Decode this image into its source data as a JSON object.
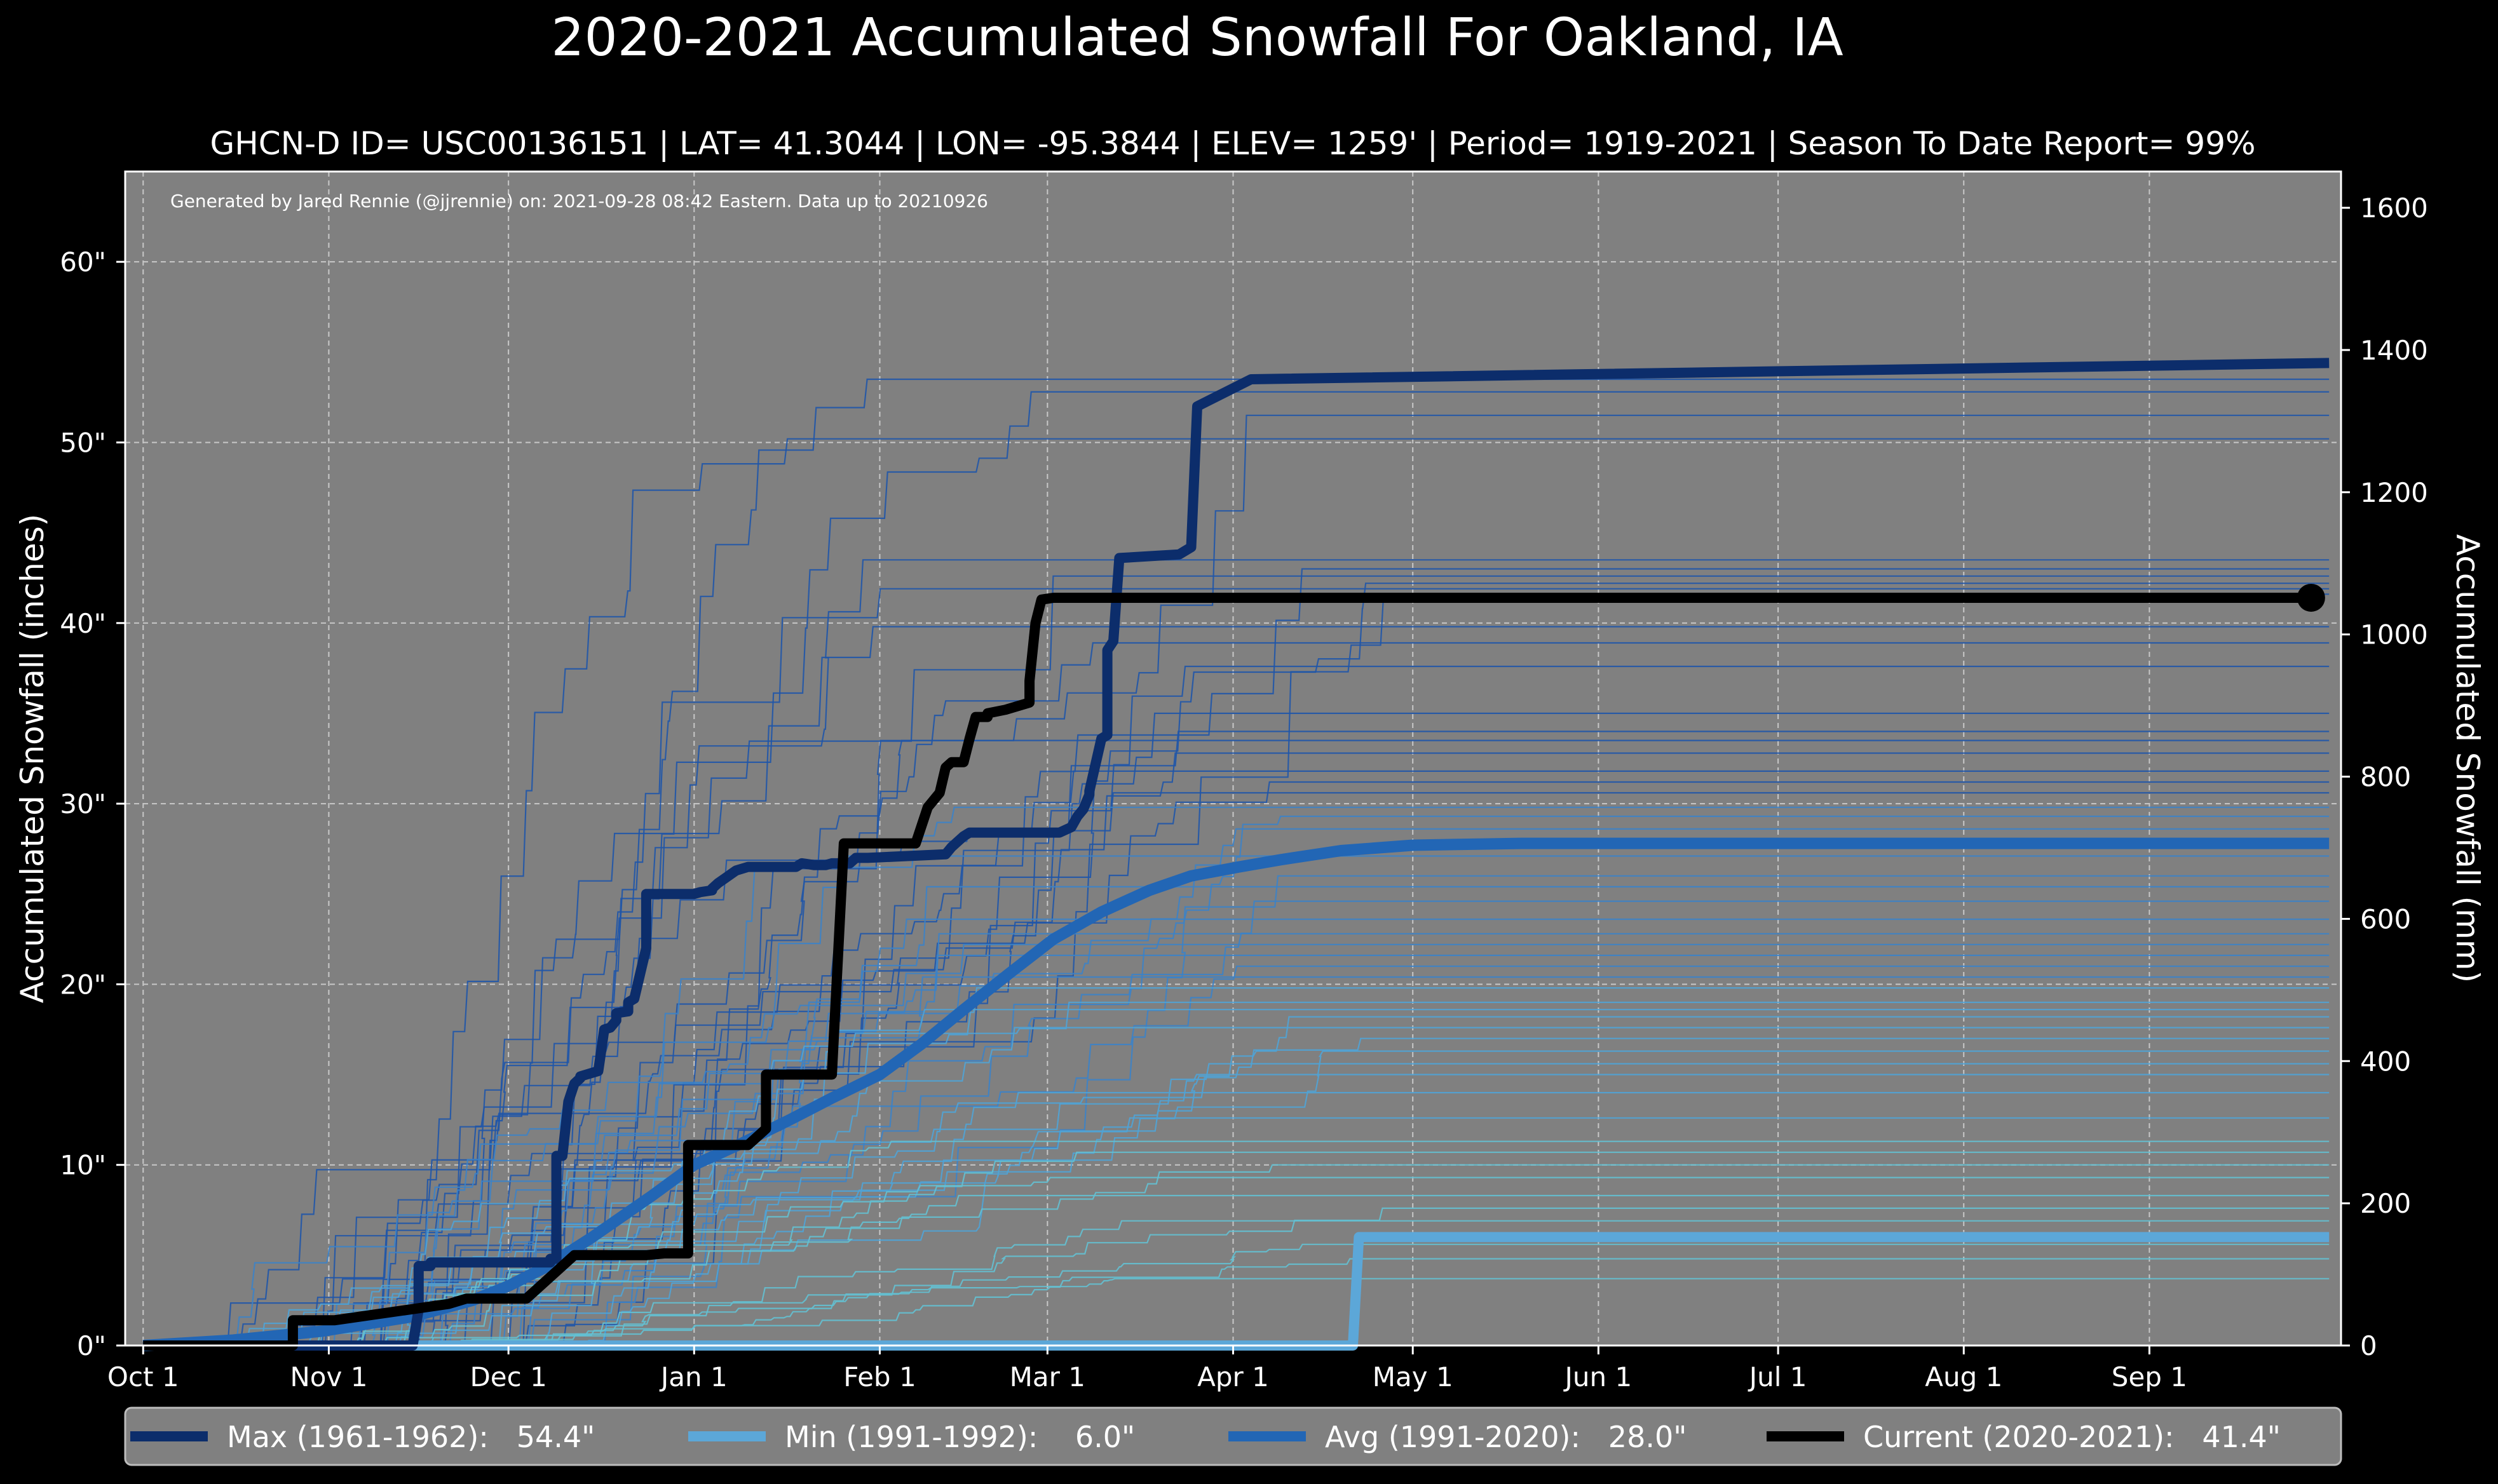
{
  "chart_data": {
    "type": "line",
    "title": "2020-2021 Accumulated Snowfall For Oakland, IA",
    "subtitle": "GHCN-D ID= USC00136151 | LAT= 41.3044 | LON= -95.3844 | ELEV= 1259' | Period= 1919-2021 | Season To Date Report= 99%",
    "annotation": "Generated by Jared Rennie (@jjrennie) on: 2021-09-28 08:42 Eastern. Data up to 20210926",
    "ylabel": "Accumulated Snowfall (inches)",
    "ylabel_right": "Accumulated Snowfall (mm)",
    "xlabel": "",
    "x_unit": "day of season (0 = Oct 1)",
    "xlim": [
      -3,
      367
    ],
    "ylim": [
      0,
      65
    ],
    "ylim_right": [
      0,
      1651
    ],
    "grid": true,
    "legend_position": "bottom",
    "x_ticks": [
      {
        "day": 0,
        "label": "Oct 1"
      },
      {
        "day": 31,
        "label": "Nov 1"
      },
      {
        "day": 61,
        "label": "Dec 1"
      },
      {
        "day": 92,
        "label": "Jan 1"
      },
      {
        "day": 123,
        "label": "Feb 1"
      },
      {
        "day": 151,
        "label": "Mar 1"
      },
      {
        "day": 182,
        "label": "Apr 1"
      },
      {
        "day": 212,
        "label": "May 1"
      },
      {
        "day": 243,
        "label": "Jun 1"
      },
      {
        "day": 273,
        "label": "Jul 1"
      },
      {
        "day": 304,
        "label": "Aug 1"
      },
      {
        "day": 335,
        "label": "Sep 1"
      }
    ],
    "y_ticks": [
      {
        "value": 0,
        "label": "0\""
      },
      {
        "value": 10,
        "label": "10\""
      },
      {
        "value": 20,
        "label": "20\""
      },
      {
        "value": 30,
        "label": "30\""
      },
      {
        "value": 40,
        "label": "40\""
      },
      {
        "value": 50,
        "label": "50\""
      },
      {
        "value": 60,
        "label": "60\""
      }
    ],
    "y_ticks_right": [
      0,
      200,
      400,
      600,
      800,
      1000,
      1200,
      1400,
      1600
    ],
    "series": [
      {
        "name": "Max (1961-1962)",
        "legend_label": "Max (1961-1962):   54.4\"",
        "color": "#0c2d6b",
        "total": 54.4,
        "x": [
          0,
          45,
          46,
          46,
          48,
          48,
          59,
          61,
          61,
          68,
          68,
          69,
          69,
          70,
          71,
          72,
          73,
          73,
          74,
          75,
          76,
          76,
          77,
          78,
          79,
          79,
          81,
          81,
          82,
          84,
          84,
          86,
          91,
          92,
          93,
          95,
          95,
          96,
          99,
          101,
          109,
          110,
          112,
          114,
          115,
          117,
          118,
          119,
          119,
          121,
          134,
          135,
          137,
          138,
          139,
          140,
          140,
          141,
          142,
          143,
          143,
          144,
          145,
          147,
          148,
          148,
          153,
          155,
          156,
          157,
          158,
          158,
          160,
          161,
          161,
          162,
          163,
          163,
          173,
          174,
          175,
          176,
          176,
          185,
          365
        ],
        "y": [
          0,
          0,
          2,
          4.4,
          4.4,
          4.6,
          4.6,
          4.6,
          4.6,
          4.6,
          4.8,
          4.8,
          10.5,
          10.5,
          13.5,
          14.5,
          14.8,
          14.9,
          15,
          15.1,
          15.2,
          15.2,
          17.5,
          17.6,
          18,
          18.4,
          18.5,
          19,
          19.2,
          22,
          25,
          25,
          25,
          25,
          25.1,
          25.2,
          25.3,
          25.6,
          26.3,
          26.5,
          26.5,
          26.7,
          26.6,
          26.6,
          26.7,
          26.7,
          26.7,
          27,
          27,
          27,
          27.2,
          27.6,
          28.2,
          28.4,
          28.4,
          28.4,
          28.4,
          28.4,
          28.4,
          28.4,
          28.4,
          28.4,
          28.4,
          28.4,
          28.4,
          28.4,
          28.4,
          28.7,
          29.3,
          29.7,
          30.5,
          30.7,
          33.6,
          33.8,
          38.5,
          39,
          43.6,
          43.6,
          43.8,
          44,
          44.2,
          52,
          52,
          53.5,
          54.4
        ]
      },
      {
        "name": "Min (1991-1992)",
        "legend_label": "Min (1991-1992):    6.0\"",
        "color": "#5ca7d8",
        "total": 6.0,
        "x": [
          0,
          202,
          203,
          365
        ],
        "y": [
          0,
          0,
          6,
          6
        ]
      },
      {
        "name": "Avg (1991-2020)",
        "legend_label": "Avg (1991-2020):   28.0\"",
        "color": "#2266b5",
        "total": 28.0,
        "x": [
          0,
          15,
          30,
          45,
          55,
          61,
          67,
          75,
          85,
          92,
          100,
          108,
          115,
          123,
          130,
          137,
          145,
          152,
          160,
          168,
          175,
          183,
          190,
          200,
          212,
          230,
          365
        ],
        "y": [
          0,
          0.3,
          0.8,
          1.6,
          2.5,
          3.3,
          4.3,
          6,
          8.3,
          10,
          11.2,
          12.5,
          13.7,
          15,
          16.7,
          18.6,
          20.7,
          22.5,
          24,
          25.2,
          26,
          26.5,
          26.9,
          27.4,
          27.7,
          27.8,
          27.8
        ]
      },
      {
        "name": "Current (2020-2021)",
        "legend_label": "Current (2020-2021):   41.4\"",
        "color": "#000000",
        "total": 41.4,
        "x": [
          0,
          18,
          25,
          25,
          32,
          32,
          51,
          54,
          54,
          60,
          64,
          72,
          72,
          77,
          84,
          87,
          90,
          91,
          91,
          94,
          101,
          104,
          104,
          107,
          109,
          115,
          117,
          118,
          121,
          121,
          129,
          131,
          131,
          133,
          134,
          135,
          136,
          137,
          138,
          139,
          141,
          141,
          144,
          148,
          148,
          149,
          150,
          152,
          154,
          154,
          362
        ],
        "y": [
          0,
          0,
          0,
          1.4,
          1.4,
          1.4,
          2.3,
          2.6,
          2.6,
          2.6,
          2.6,
          5,
          5,
          5,
          5,
          5.1,
          5.1,
          5.1,
          11.1,
          11.1,
          11.1,
          12,
          15,
          15,
          15,
          15,
          27.8,
          27.8,
          27.8,
          27.8,
          27.8,
          29.8,
          29.8,
          30.6,
          32,
          32.3,
          32.3,
          32.3,
          33.6,
          34.8,
          34.8,
          35,
          35.2,
          35.6,
          36.8,
          40,
          41.3,
          41.4,
          41.4,
          41.4,
          41.4
        ]
      }
    ],
    "historical_series": {
      "description": "Individual historical seasons (thin lines), season-end totals in inches",
      "color_scale": [
        "#1f55a8",
        "#3b82c8",
        "#4fa3d6",
        "#63c0d1"
      ],
      "season_totals": [
        53.5,
        52.8,
        51.5,
        50.2,
        43.5,
        43.0,
        42.6,
        42.2,
        41.9,
        41.6,
        39.8,
        38.9,
        37.6,
        35.0,
        34.0,
        33.5,
        32.8,
        31.8,
        31.2,
        30.6,
        29.8,
        29.3,
        28.6,
        27.1,
        26.0,
        25.4,
        24.6,
        23.6,
        22.8,
        22.2,
        21.6,
        21.0,
        20.4,
        19.8,
        19.0,
        18.6,
        18.2,
        17.6,
        17.0,
        16.3,
        15.6,
        15.0,
        14.0,
        12.6,
        11.3,
        10.7,
        10.0,
        9.3,
        8.3,
        7.6,
        6.9,
        5.6,
        4.8,
        3.7
      ]
    }
  }
}
